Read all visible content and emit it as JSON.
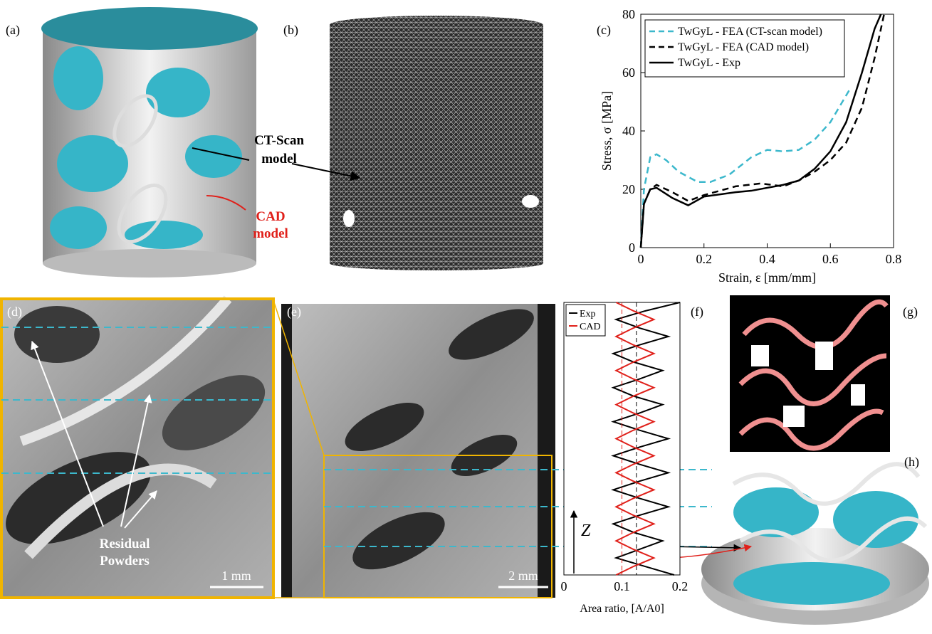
{
  "chart_data": [
    {
      "type": "line",
      "xlabel": "Strain, ε [mm/mm]",
      "ylabel": "Stress, σ [MPa]",
      "xlim": [
        0,
        0.8
      ],
      "xticks": [
        0,
        0.2,
        0.4,
        0.6,
        0.8
      ],
      "ylim": [
        0,
        80
      ],
      "yticks": [
        0,
        20,
        40,
        60,
        80
      ],
      "grid": false,
      "legend": "upper-left",
      "series": [
        {
          "name": "TwGyL - FEA (CT-scan model)",
          "color": "#3cb8cc",
          "dashed": true,
          "x": [
            0,
            0.01,
            0.03,
            0.05,
            0.08,
            0.12,
            0.18,
            0.22,
            0.28,
            0.35,
            0.4,
            0.45,
            0.5,
            0.55,
            0.6,
            0.66
          ],
          "values": [
            0,
            20,
            31,
            32,
            30,
            26,
            22.5,
            22.5,
            25,
            31,
            33.5,
            33,
            33.5,
            37,
            43,
            54
          ]
        },
        {
          "name": "TwGyL - FEA (CAD model)",
          "color": "#000000",
          "dashed": true,
          "x": [
            0,
            0.01,
            0.03,
            0.05,
            0.1,
            0.15,
            0.2,
            0.3,
            0.38,
            0.45,
            0.5,
            0.55,
            0.6,
            0.65,
            0.7,
            0.74,
            0.77
          ],
          "values": [
            0,
            15,
            20,
            21.5,
            19,
            16,
            18,
            21,
            22,
            21,
            23,
            26,
            30,
            36,
            48,
            65,
            80
          ]
        },
        {
          "name": "TwGyL - Exp",
          "color": "#000000",
          "dashed": false,
          "x": [
            0,
            0.01,
            0.03,
            0.05,
            0.1,
            0.15,
            0.2,
            0.3,
            0.35,
            0.4,
            0.45,
            0.5,
            0.55,
            0.6,
            0.65,
            0.7,
            0.74,
            0.76
          ],
          "values": [
            0,
            15,
            20,
            20.5,
            17,
            14.5,
            17.5,
            19,
            19.5,
            20.5,
            21.5,
            23,
            27,
            33,
            43,
            60,
            75,
            80
          ]
        }
      ]
    },
    {
      "type": "profile",
      "xlabel": "Area ratio, [A/A0]",
      "ylabel": "Z",
      "xlim": [
        0,
        0.2
      ],
      "xticks": [
        0,
        0.1,
        0.2
      ],
      "zlim": [
        0,
        32
      ],
      "legend": "upper-left",
      "z": [
        0,
        1,
        2,
        3,
        4,
        5,
        6,
        7,
        8,
        9,
        10,
        11,
        12,
        13,
        14,
        15,
        16,
        17,
        18,
        19,
        20,
        21,
        22,
        23,
        24,
        25,
        26,
        27,
        28,
        29,
        30,
        31,
        32
      ],
      "series": [
        {
          "name": "Exp",
          "color": "#000000",
          "reference": 0.125,
          "values": [
            0.19,
            0.14,
            0.09,
            0.13,
            0.17,
            0.12,
            0.085,
            0.13,
            0.18,
            0.13,
            0.085,
            0.13,
            0.18,
            0.13,
            0.085,
            0.13,
            0.18,
            0.13,
            0.085,
            0.13,
            0.17,
            0.12,
            0.085,
            0.13,
            0.17,
            0.12,
            0.085,
            0.13,
            0.18,
            0.13,
            0.09,
            0.14,
            0.2
          ]
        },
        {
          "name": "CAD",
          "color": "#e0201a",
          "reference": 0.1,
          "values": [
            0.09,
            0.12,
            0.155,
            0.12,
            0.09,
            0.12,
            0.155,
            0.12,
            0.09,
            0.12,
            0.155,
            0.12,
            0.09,
            0.12,
            0.155,
            0.12,
            0.09,
            0.12,
            0.155,
            0.12,
            0.09,
            0.12,
            0.155,
            0.12,
            0.09,
            0.12,
            0.155,
            0.12,
            0.09,
            0.12,
            0.155,
            0.12,
            0.09
          ]
        }
      ]
    }
  ],
  "figure": {
    "panel_labels": [
      "(a)",
      "(b)",
      "(c)",
      "(d)",
      "(e)",
      "(f)",
      "(g)",
      "(h)"
    ],
    "ct_scan_label": [
      "CT-Scan",
      "model"
    ],
    "cad_label": [
      "CAD",
      "model"
    ],
    "powder_label": [
      "Residual",
      "Powders"
    ],
    "scale_bars": [
      "1 mm",
      "2 mm"
    ]
  }
}
